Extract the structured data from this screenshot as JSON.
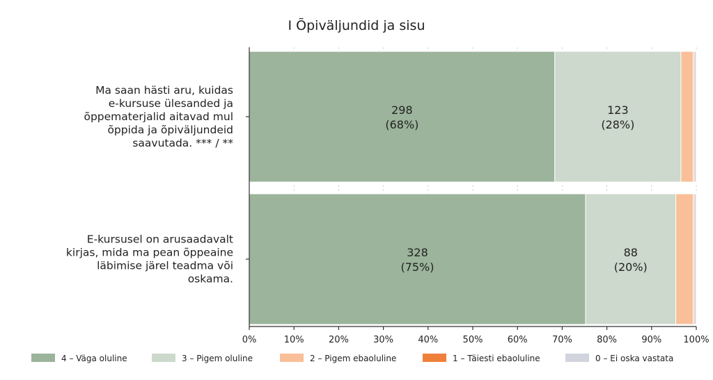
{
  "chart_data": {
    "type": "bar",
    "orientation": "horizontal",
    "stacked": true,
    "normalized": true,
    "title": "I Õpiväljundid ja sisu",
    "categories": [
      [
        "Ma saan hästi aru, kuidas",
        "e-kursuse ülesanded ja",
        "õppematerjalid aitavad mul",
        "õppida ja õpiväljundeid",
        "saavutada. *** / **"
      ],
      [
        "E-kursusel on arusaadavalt",
        "kirjas, mida ma pean õppeaine",
        "läbimise järel teadma või",
        "oskama."
      ]
    ],
    "series": [
      {
        "name": "4 – Väga oluline",
        "color": "#9bb49b",
        "values": [
          298,
          328
        ],
        "labels": [
          [
            "298",
            "(68%)"
          ],
          [
            "328",
            "(75%)"
          ]
        ]
      },
      {
        "name": "3 – Pigem oluline",
        "color": "#ccd9cc",
        "values": [
          123,
          88
        ],
        "labels": [
          [
            "123",
            "(28%)"
          ],
          [
            "88",
            "(20%)"
          ]
        ]
      },
      {
        "name": "2 – Pigem ebaoluline",
        "color": "#f9bf98",
        "values": [
          12,
          17
        ],
        "labels": [
          null,
          null
        ]
      },
      {
        "name": "1 – Täiesti ebaoluline",
        "color": "#f07f3a",
        "values": [
          1,
          1
        ],
        "labels": [
          null,
          null
        ]
      },
      {
        "name": "0 – Ei oska vastata",
        "color": "#d1d4dc",
        "values": [
          2,
          2
        ],
        "labels": [
          null,
          null
        ]
      }
    ],
    "xticks": [
      "0%",
      "10%",
      "20%",
      "30%",
      "40%",
      "50%",
      "60%",
      "70%",
      "80%",
      "90%",
      "100%"
    ],
    "xlim": [
      0,
      100
    ],
    "grid": true,
    "legend": "bottom"
  }
}
